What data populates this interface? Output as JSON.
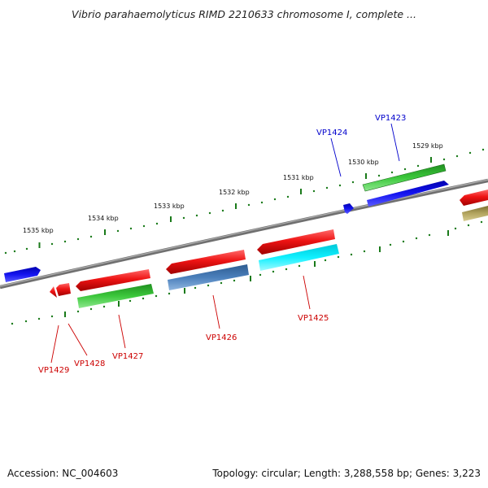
{
  "title": "Vibrio parahaemolyticus RIMD 2210633 chromosome I, complete ...",
  "footer": {
    "accession": "Accession: NC_004603",
    "summary": "Topology: circular; Length: 3,288,558 bp; Genes: 3,223"
  },
  "colors": {
    "backbone": "#808080",
    "ruler": "#1a7a1a",
    "forward_label": "#0000cc",
    "reverse_label": "#cc0000"
  },
  "ruler_labels": [
    "1535 kbp",
    "1534 kbp",
    "1533 kbp",
    "1532 kbp",
    "1531 kbp",
    "1530 kbp",
    "1529 kbp"
  ],
  "gene_labels": [
    "VP1424",
    "VP1423",
    "VP1425",
    "VP1426",
    "VP1427",
    "VP1428",
    "VP1429"
  ],
  "genes": [
    {
      "name": "VP1423",
      "strand": "forward",
      "color": "#2fbf2f"
    },
    {
      "name": "VP1424",
      "strand": "forward",
      "color": "#1010e0"
    },
    {
      "name": "VP1425",
      "strand": "reverse",
      "color": "#e81818"
    },
    {
      "name": "VP1426",
      "strand": "reverse",
      "color": "#e81818"
    },
    {
      "name": "VP1427",
      "strand": "reverse",
      "color": "#e81818"
    },
    {
      "name": "VP1428",
      "strand": "reverse",
      "color": "#e81818"
    },
    {
      "name": "VP1429",
      "strand": "reverse",
      "color": "#e81818"
    }
  ]
}
